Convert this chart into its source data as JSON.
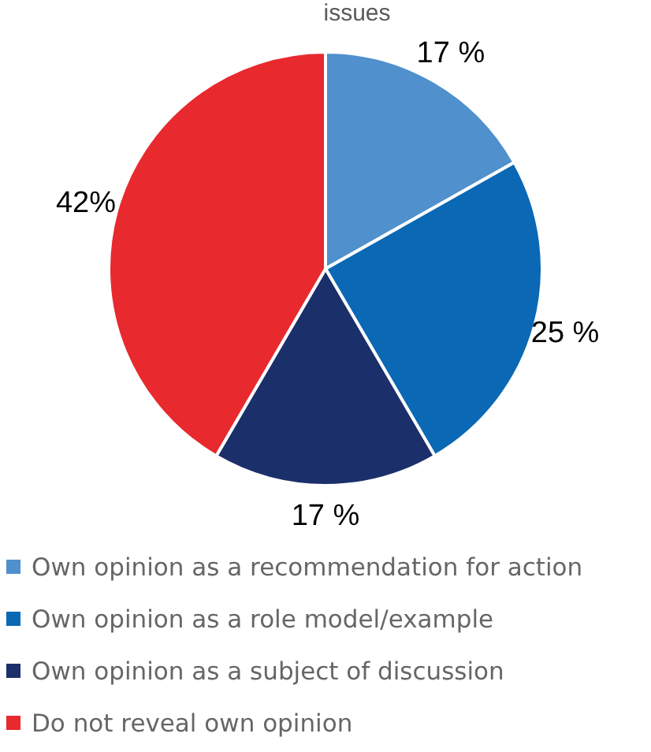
{
  "chart_data": {
    "type": "pie",
    "title": "issues",
    "categories": [
      "Own opinion as a recommendation for action",
      "Own opinion as a role model/example",
      "Own opinion as a subject of discussion",
      "Do not reveal own opinion"
    ],
    "values": [
      17,
      25,
      17,
      42
    ],
    "value_labels": [
      "17 %",
      "25 %",
      "17 %",
      "42%"
    ],
    "colors": [
      "#4f90cd",
      "#0a68b4",
      "#1b2f6a",
      "#e8292e"
    ],
    "legend": "bottom"
  }
}
